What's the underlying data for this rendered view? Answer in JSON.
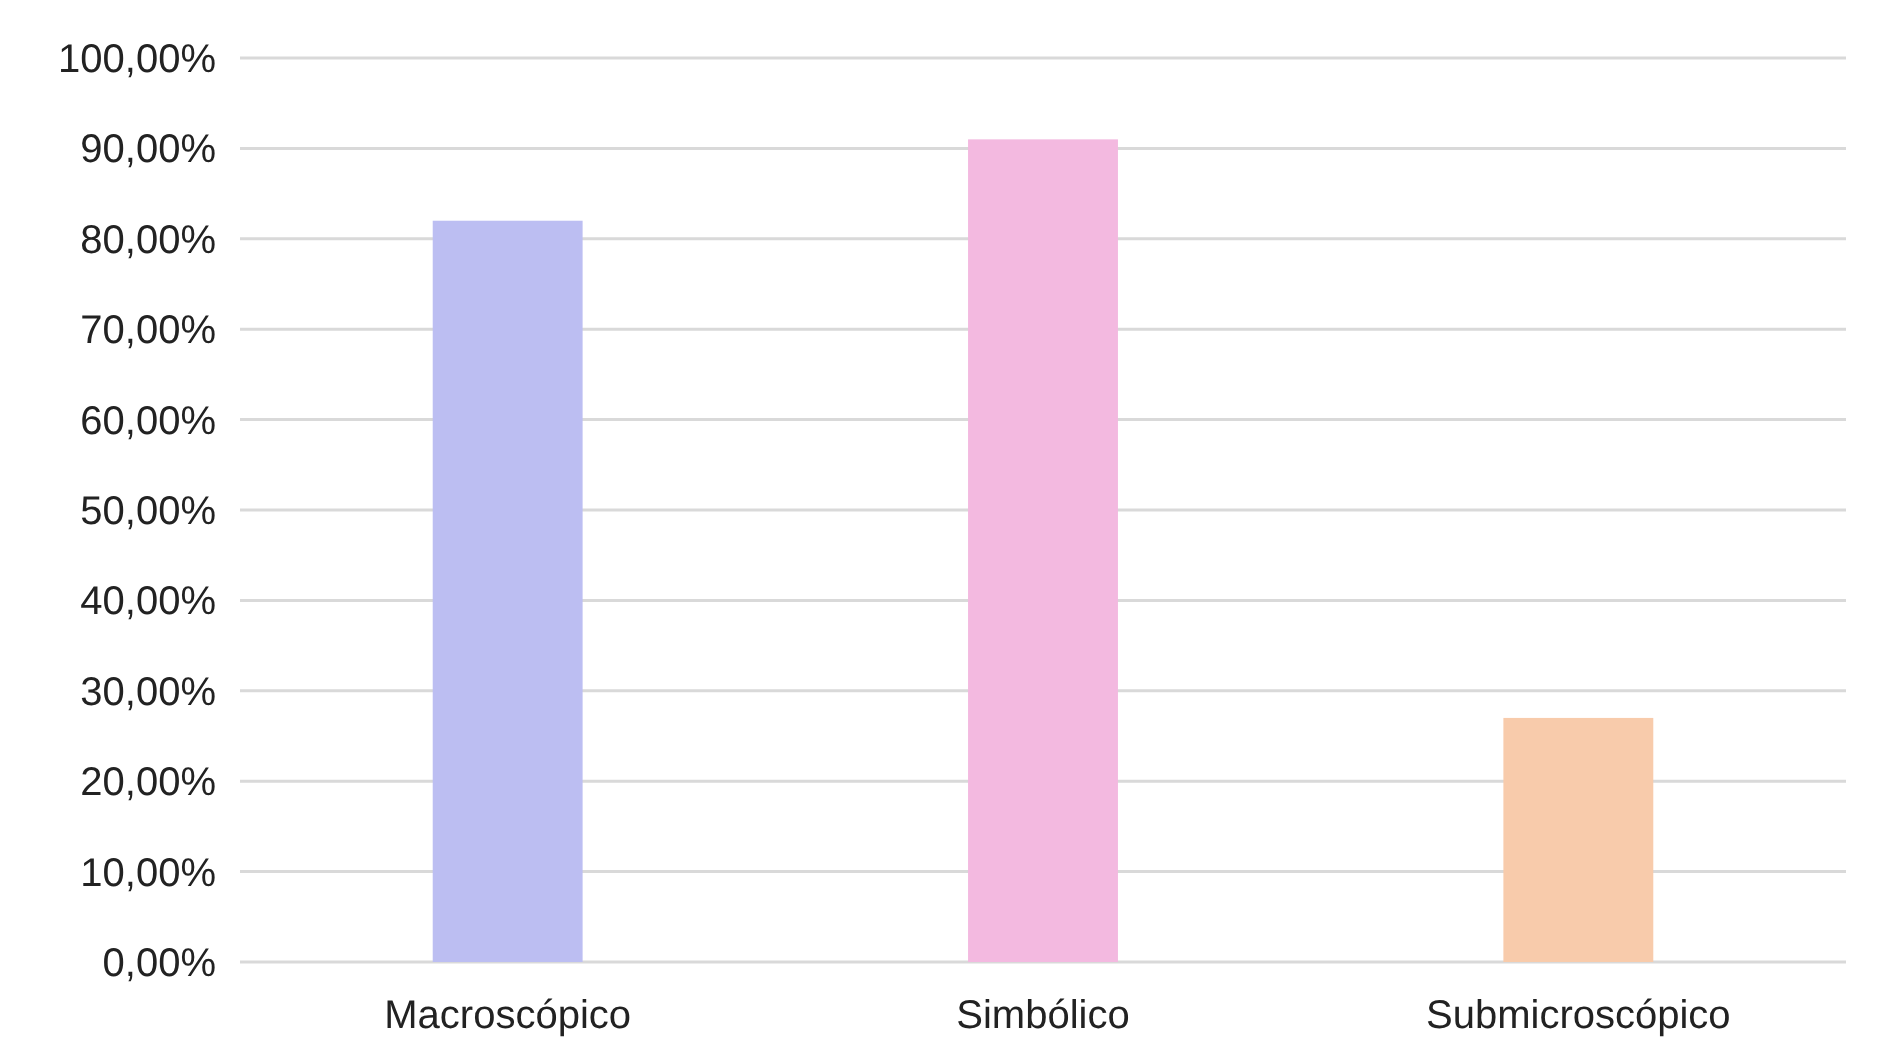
{
  "chart_data": {
    "type": "bar",
    "categories": [
      "Macroscópico",
      "Simbólico",
      "Submicroscópico"
    ],
    "values": [
      82,
      91,
      27
    ],
    "colors": [
      "#bcbef2",
      "#f3b9e0",
      "#f8cbab"
    ],
    "ylim": [
      0,
      100
    ],
    "yticks": [
      {
        "value": 0,
        "label": "0,00%"
      },
      {
        "value": 10,
        "label": "10,00%"
      },
      {
        "value": 20,
        "label": "20,00%"
      },
      {
        "value": 30,
        "label": "30,00%"
      },
      {
        "value": 40,
        "label": "40,00%"
      },
      {
        "value": 50,
        "label": "50,00%"
      },
      {
        "value": 60,
        "label": "60,00%"
      },
      {
        "value": 70,
        "label": "70,00%"
      },
      {
        "value": 80,
        "label": "80,00%"
      },
      {
        "value": 90,
        "label": "90,00%"
      },
      {
        "value": 100,
        "label": "100,00%"
      }
    ],
    "grid": "y"
  }
}
